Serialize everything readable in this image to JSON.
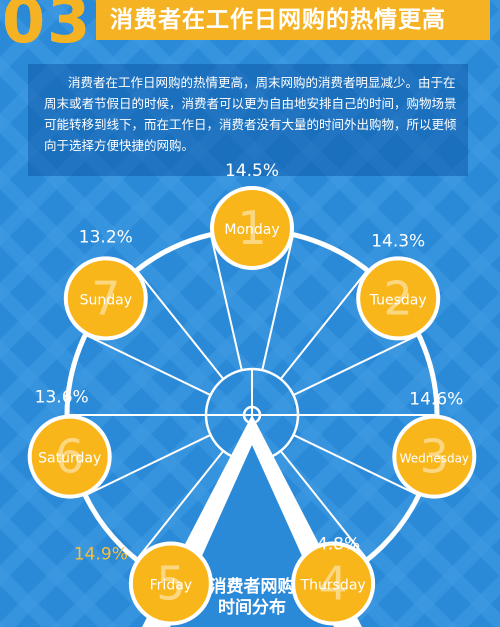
{
  "header": {
    "number": "03",
    "title": "消费者在工作日网购的热情更高"
  },
  "intro": "消费者在工作日网购的热情更高，周末网购的消费者明显减少。由于在周末或者节假日的时候，消费者可以更为自由地安排自己的时间，购物场景可能转移到线下，而在工作日，消费者没有大量的时间外出购物，所以更倾向于选择方便快捷的网购。",
  "colors": {
    "background": "#2b8ad8",
    "stripe": "#4aa2e6",
    "accent": "#f5b324",
    "gondola": "#f9b61a",
    "highlight_label": "#f5c03c",
    "text": "#ffffff"
  },
  "chart_data": {
    "type": "pie",
    "title": "消费者网购时间分布",
    "center_label": [
      "消费者网购",
      "时间分布"
    ],
    "categories": [
      "Monday",
      "Tuesday",
      "Wednesday",
      "Thursday",
      "Friday",
      "Saturday",
      "Sunday"
    ],
    "numbers": [
      "1",
      "2",
      "3",
      "4",
      "5",
      "6",
      "7"
    ],
    "values": [
      14.5,
      14.3,
      14.6,
      14.8,
      14.9,
      13.6,
      13.2
    ],
    "labels": [
      "14.5%",
      "14.3%",
      "14.6%",
      "14.8%",
      "14.9%",
      "13.6%",
      "13.2%"
    ],
    "highlight": "Friday"
  }
}
